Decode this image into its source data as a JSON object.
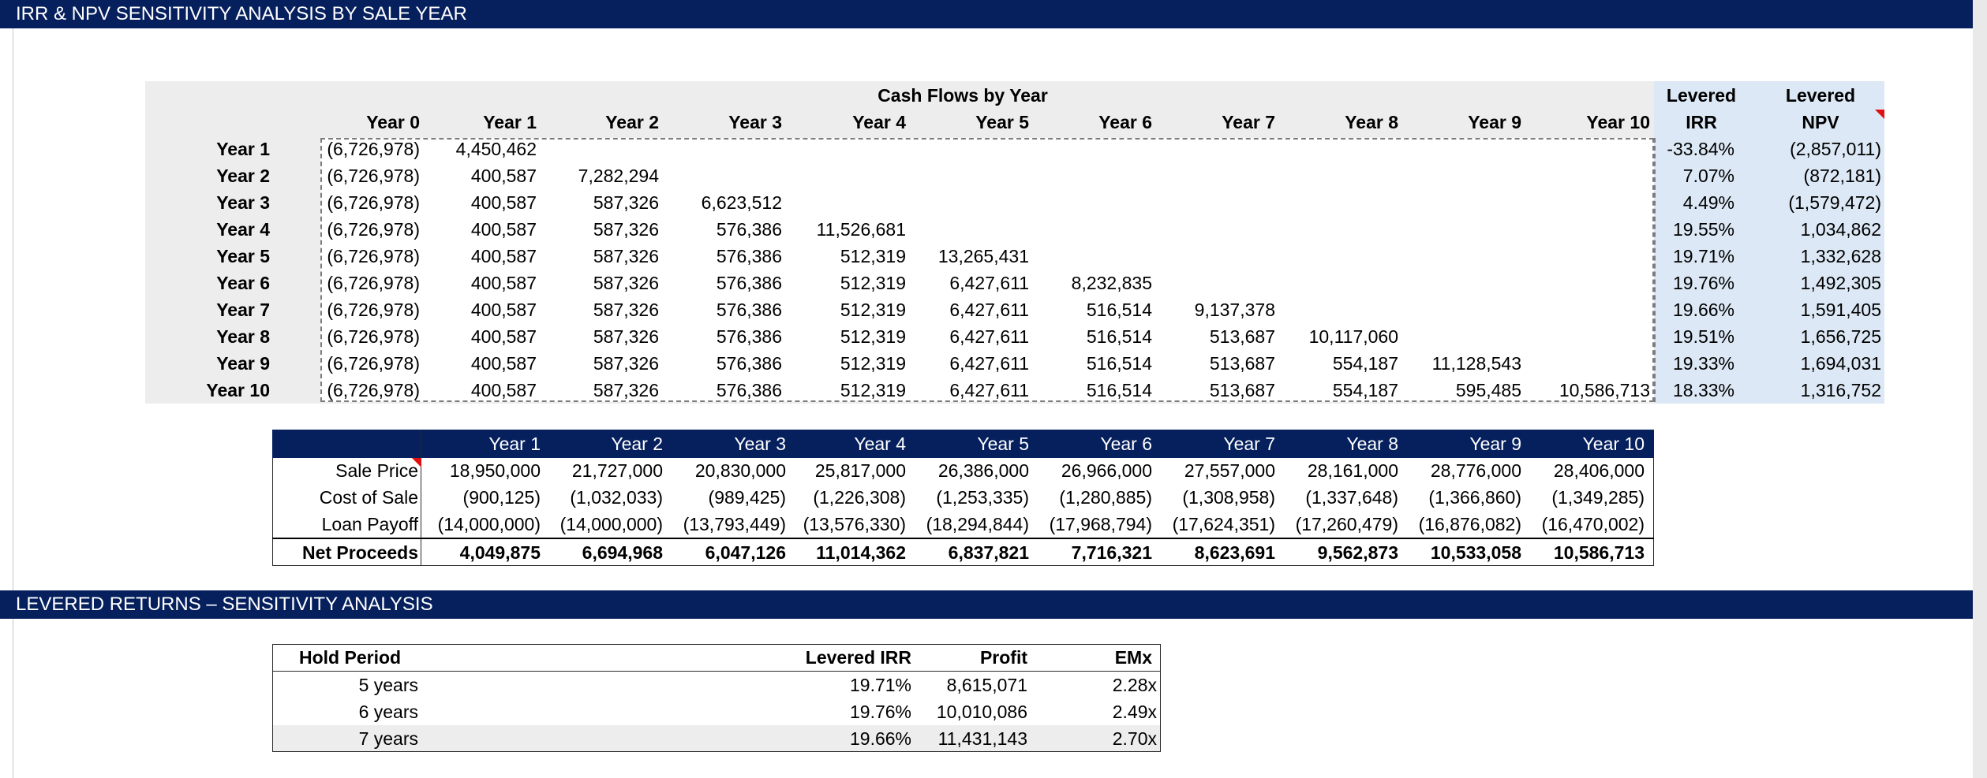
{
  "sections": {
    "sensitivity_title": "IRR & NPV SENSITIVITY ANALYSIS BY SALE YEAR",
    "returns_title": "LEVERED RETURNS – SENSITIVITY ANALYSIS"
  },
  "cashflows": {
    "group_title": "Cash Flows by Year",
    "columns": [
      "Year 0",
      "Year 1",
      "Year 2",
      "Year 3",
      "Year 4",
      "Year 5",
      "Year 6",
      "Year 7",
      "Year 8",
      "Year 9",
      "Year 10"
    ],
    "irr_header": [
      "Levered",
      "IRR"
    ],
    "npv_header": [
      "Levered",
      "NPV"
    ],
    "rows": [
      {
        "label": "Year 1",
        "values": [
          "(6,726,978)",
          "4,450,462",
          "",
          "",
          "",
          "",
          "",
          "",
          "",
          "",
          ""
        ],
        "irr": "-33.84%",
        "npv": "(2,857,011)"
      },
      {
        "label": "Year 2",
        "values": [
          "(6,726,978)",
          "400,587",
          "7,282,294",
          "",
          "",
          "",
          "",
          "",
          "",
          "",
          ""
        ],
        "irr": "7.07%",
        "npv": "(872,181)"
      },
      {
        "label": "Year 3",
        "values": [
          "(6,726,978)",
          "400,587",
          "587,326",
          "6,623,512",
          "",
          "",
          "",
          "",
          "",
          "",
          ""
        ],
        "irr": "4.49%",
        "npv": "(1,579,472)"
      },
      {
        "label": "Year 4",
        "values": [
          "(6,726,978)",
          "400,587",
          "587,326",
          "576,386",
          "11,526,681",
          "",
          "",
          "",
          "",
          "",
          ""
        ],
        "irr": "19.55%",
        "npv": "1,034,862"
      },
      {
        "label": "Year 5",
        "values": [
          "(6,726,978)",
          "400,587",
          "587,326",
          "576,386",
          "512,319",
          "13,265,431",
          "",
          "",
          "",
          "",
          ""
        ],
        "irr": "19.71%",
        "npv": "1,332,628"
      },
      {
        "label": "Year 6",
        "values": [
          "(6,726,978)",
          "400,587",
          "587,326",
          "576,386",
          "512,319",
          "6,427,611",
          "8,232,835",
          "",
          "",
          "",
          ""
        ],
        "irr": "19.76%",
        "npv": "1,492,305"
      },
      {
        "label": "Year 7",
        "values": [
          "(6,726,978)",
          "400,587",
          "587,326",
          "576,386",
          "512,319",
          "6,427,611",
          "516,514",
          "9,137,378",
          "",
          "",
          ""
        ],
        "irr": "19.66%",
        "npv": "1,591,405"
      },
      {
        "label": "Year 8",
        "values": [
          "(6,726,978)",
          "400,587",
          "587,326",
          "576,386",
          "512,319",
          "6,427,611",
          "516,514",
          "513,687",
          "10,117,060",
          "",
          ""
        ],
        "irr": "19.51%",
        "npv": "1,656,725"
      },
      {
        "label": "Year 9",
        "values": [
          "(6,726,978)",
          "400,587",
          "587,326",
          "576,386",
          "512,319",
          "6,427,611",
          "516,514",
          "513,687",
          "554,187",
          "11,128,543",
          ""
        ],
        "irr": "19.33%",
        "npv": "1,694,031"
      },
      {
        "label": "Year 10",
        "values": [
          "(6,726,978)",
          "400,587",
          "587,326",
          "576,386",
          "512,319",
          "6,427,611",
          "516,514",
          "513,687",
          "554,187",
          "595,485",
          "10,586,713"
        ],
        "irr": "18.33%",
        "npv": "1,316,752"
      }
    ]
  },
  "proceeds": {
    "columns": [
      "Year 1",
      "Year 2",
      "Year 3",
      "Year 4",
      "Year 5",
      "Year 6",
      "Year 7",
      "Year 8",
      "Year 9",
      "Year 10"
    ],
    "rows": [
      {
        "label": "Sale Price",
        "bold": false,
        "values": [
          "18,950,000",
          "21,727,000",
          "20,830,000",
          "25,817,000",
          "26,386,000",
          "26,966,000",
          "27,557,000",
          "28,161,000",
          "28,776,000",
          "28,406,000"
        ]
      },
      {
        "label": "Cost of Sale",
        "bold": false,
        "values": [
          "(900,125)",
          "(1,032,033)",
          "(989,425)",
          "(1,226,308)",
          "(1,253,335)",
          "(1,280,885)",
          "(1,308,958)",
          "(1,337,648)",
          "(1,366,860)",
          "(1,349,285)"
        ]
      },
      {
        "label": "Loan Payoff",
        "bold": false,
        "values": [
          "(14,000,000)",
          "(14,000,000)",
          "(13,793,449)",
          "(13,576,330)",
          "(18,294,844)",
          "(17,968,794)",
          "(17,624,351)",
          "(17,260,479)",
          "(16,876,082)",
          "(16,470,002)"
        ]
      },
      {
        "label": "Net Proceeds",
        "bold": true,
        "values": [
          "4,049,875",
          "6,694,968",
          "6,047,126",
          "11,014,362",
          "6,837,821",
          "7,716,321",
          "8,623,691",
          "9,562,873",
          "10,533,058",
          "10,586,713"
        ]
      }
    ]
  },
  "returns": {
    "headers": {
      "period": "Hold Period",
      "irr": "Levered IRR",
      "profit": "Profit",
      "emx": "EMx"
    },
    "rows": [
      {
        "period": "5 years",
        "irr": "19.71%",
        "profit": "8,615,071",
        "emx": "2.28x"
      },
      {
        "period": "6 years",
        "irr": "19.76%",
        "profit": "10,010,086",
        "emx": "2.49x"
      },
      {
        "period": "7 years",
        "irr": "19.66%",
        "profit": "11,431,143",
        "emx": "2.70x"
      }
    ]
  },
  "colors": {
    "header_navy": "#06205e",
    "sensitivity_fill": "#dce8f5",
    "grey_fill": "#ededed",
    "flag_red": "#e01010"
  }
}
